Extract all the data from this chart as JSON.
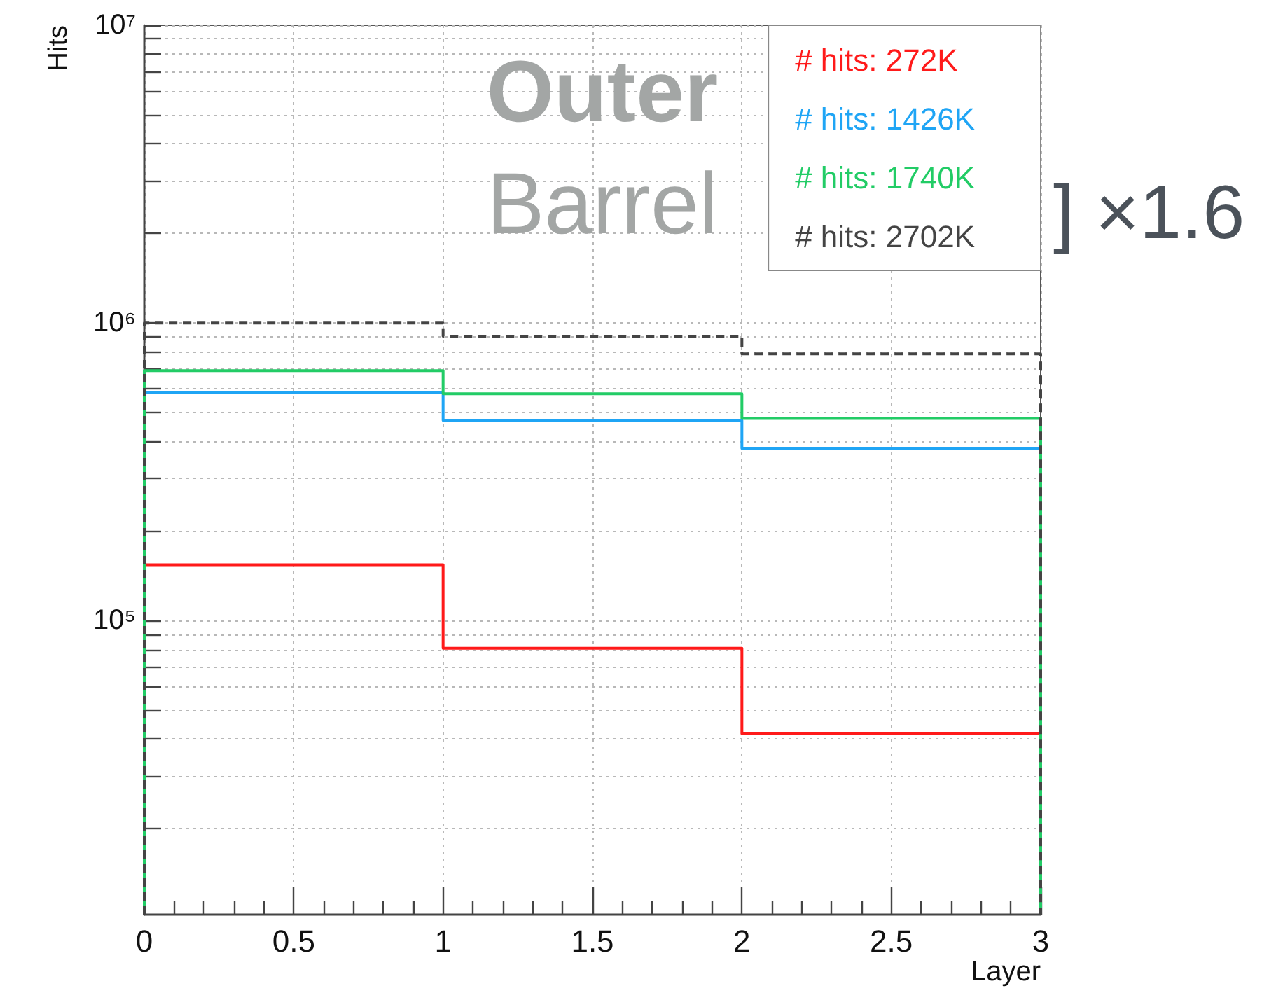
{
  "chart_data": {
    "type": "histogram",
    "bins": [
      0,
      1,
      2,
      3
    ],
    "series": [
      {
        "name": "# hits: 272K",
        "color": "#ff1a1a",
        "values": [
          154000,
          80800,
          41700
        ]
      },
      {
        "name": "# hits: 1426K",
        "color": "#1fa5f5",
        "values": [
          582000,
          471000,
          379000
        ]
      },
      {
        "name": "# hits: 1740K",
        "color": "#22cc66",
        "values": [
          692000,
          578000,
          478000
        ]
      },
      {
        "name": "# hits: 2702K",
        "color": "#444444",
        "values": [
          1000000,
          903000,
          788000
        ],
        "line_style": "dashed"
      }
    ],
    "xlabel": "Layer",
    "ylabel": "Hits",
    "log": true,
    "xlim": [
      0,
      3
    ],
    "xticks": [
      0,
      0.5,
      1,
      1.5,
      2,
      2.5,
      3
    ],
    "ylim": [
      10300,
      10000000
    ],
    "yticks": [
      {
        "value": 20000,
        "label": null
      },
      {
        "value": 30000,
        "label": null
      },
      {
        "value": 40000,
        "label": null
      },
      {
        "value": 50000,
        "label": null
      },
      {
        "value": 60000,
        "label": null
      },
      {
        "value": 70000,
        "label": null
      },
      {
        "value": 80000,
        "label": null
      },
      {
        "value": 90000,
        "label": null
      },
      {
        "value": 100000,
        "label": "10⁵"
      },
      {
        "value": 200000,
        "label": null
      },
      {
        "value": 300000,
        "label": null
      },
      {
        "value": 400000,
        "label": null
      },
      {
        "value": 500000,
        "label": null
      },
      {
        "value": 600000,
        "label": null
      },
      {
        "value": 700000,
        "label": null
      },
      {
        "value": 800000,
        "label": null
      },
      {
        "value": 900000,
        "label": null
      },
      {
        "value": 1000000,
        "label": "10⁶"
      },
      {
        "value": 2000000,
        "label": null
      },
      {
        "value": 3000000,
        "label": null
      },
      {
        "value": 4000000,
        "label": null
      },
      {
        "value": 5000000,
        "label": null
      },
      {
        "value": 6000000,
        "label": null
      },
      {
        "value": 7000000,
        "label": null
      },
      {
        "value": 8000000,
        "label": null
      },
      {
        "value": 9000000,
        "label": null
      },
      {
        "value": 10000000,
        "label": "10⁷"
      }
    ],
    "grid": true,
    "legend": "top right",
    "annotations": [
      "Outer\nBarrel",
      "] ×1.6"
    ]
  }
}
